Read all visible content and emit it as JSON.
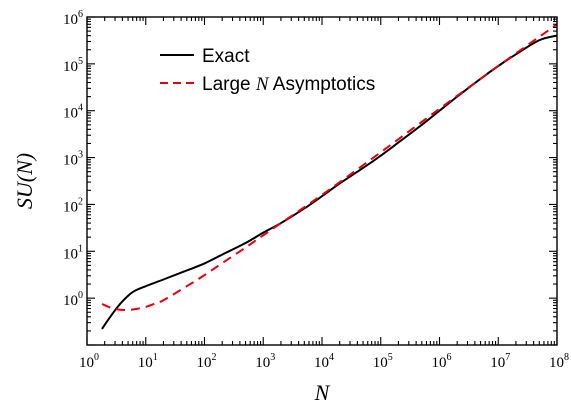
{
  "chart_data": {
    "type": "line",
    "xlabel": "N",
    "ylabel": "SU(N)",
    "xscale": "log",
    "yscale": "log",
    "xlim": [
      1,
      100000000
    ],
    "ylim": [
      0.1,
      1000000
    ],
    "x_ticks": [
      {
        "base": "10",
        "exp": "0"
      },
      {
        "base": "10",
        "exp": "1"
      },
      {
        "base": "10",
        "exp": "2"
      },
      {
        "base": "10",
        "exp": "3"
      },
      {
        "base": "10",
        "exp": "4"
      },
      {
        "base": "10",
        "exp": "5"
      },
      {
        "base": "10",
        "exp": "6"
      },
      {
        "base": "10",
        "exp": "7"
      },
      {
        "base": "10",
        "exp": "8"
      }
    ],
    "y_ticks": [
      {
        "base": "10",
        "exp": "0"
      },
      {
        "base": "10",
        "exp": "1"
      },
      {
        "base": "10",
        "exp": "2"
      },
      {
        "base": "10",
        "exp": "3"
      },
      {
        "base": "10",
        "exp": "4"
      },
      {
        "base": "10",
        "exp": "5"
      },
      {
        "base": "10",
        "exp": "6"
      }
    ],
    "legend_position": "top-left",
    "series": [
      {
        "name": "Exact",
        "color": "#000000",
        "style": "solid",
        "x": [
          1.8,
          2.2,
          3,
          4,
          6,
          10,
          20,
          50,
          100,
          200,
          500,
          1000,
          2000,
          5000,
          10000,
          20000,
          50000,
          100000,
          200000,
          500000,
          1000000,
          2000000,
          5000000,
          10000000,
          20000000,
          50000000,
          100000000
        ],
        "y": [
          0.22,
          0.32,
          0.55,
          0.85,
          1.35,
          1.8,
          2.5,
          3.9,
          5.5,
          8.5,
          15,
          25,
          40,
          82,
          150,
          280,
          600,
          1100,
          2100,
          5000,
          10000,
          20000,
          48000,
          90000,
          160000,
          320000,
          400000
        ]
      },
      {
        "name": "Large N Asymptotics",
        "color": "#e8000b",
        "style": "dashed",
        "x": [
          1.8,
          2.5,
          3.5,
          5,
          7,
          10,
          15,
          20,
          50,
          100,
          200,
          500,
          1000,
          10000,
          100000,
          1000000,
          10000000,
          100000000
        ],
        "y": [
          0.75,
          0.63,
          0.57,
          0.56,
          0.59,
          0.65,
          0.78,
          0.9,
          1.8,
          3.1,
          5.6,
          12,
          22,
          160,
          1300,
          11000,
          90000,
          700000
        ]
      }
    ],
    "legend": [
      {
        "label": "Exact",
        "color": "#000000",
        "style": "solid"
      },
      {
        "label_pre": "Large ",
        "label_italic": "N",
        "label_post": " Asymptotics",
        "color": "#e8000b",
        "style": "dashed"
      }
    ]
  }
}
